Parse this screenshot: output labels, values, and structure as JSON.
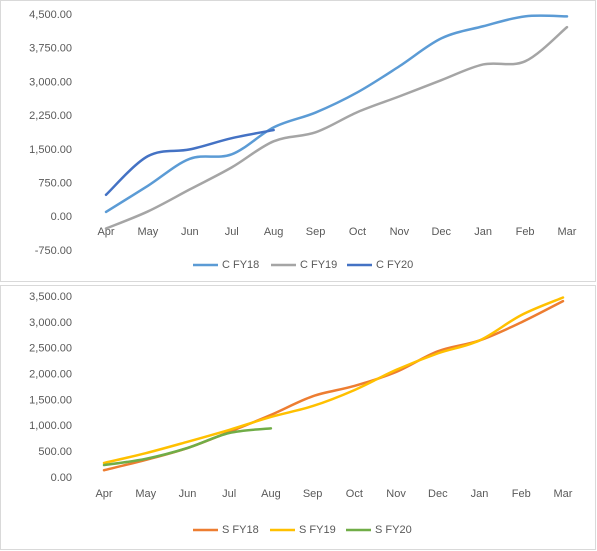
{
  "chart_data": [
    {
      "type": "line",
      "categories": [
        "Apr",
        "May",
        "Jun",
        "Jul",
        "Aug",
        "Sep",
        "Oct",
        "Nov",
        "Dec",
        "Jan",
        "Feb",
        "Mar"
      ],
      "series": [
        {
          "name": "C FY18",
          "color": "#5b9bd5",
          "values": [
            120,
            700,
            1300,
            1400,
            2000,
            2330,
            2780,
            3360,
            3980,
            4250,
            4470,
            4470
          ]
        },
        {
          "name": "C FY19",
          "color": "#a5a5a5",
          "values": [
            -250,
            130,
            620,
            1110,
            1690,
            1890,
            2340,
            2690,
            3050,
            3400,
            3470,
            4230
          ]
        },
        {
          "name": "C FY20",
          "color": "#4472c4",
          "values": [
            500,
            1360,
            1510,
            1760,
            1940,
            null,
            null,
            null,
            null,
            null,
            null,
            null
          ]
        }
      ],
      "ylim": [
        -750,
        4500
      ],
      "yticks": [
        {
          "value": 4500,
          "label": "4,500.00"
        },
        {
          "value": 3750,
          "label": "3,750.00"
        },
        {
          "value": 3000,
          "label": "3,000.00"
        },
        {
          "value": 2250,
          "label": "2,250.00"
        },
        {
          "value": 1500,
          "label": "1,500.00"
        },
        {
          "value": 750,
          "label": "750.00"
        },
        {
          "value": 0,
          "label": "0.00"
        },
        {
          "value": -750,
          "label": "-750.00"
        }
      ],
      "grid": false,
      "legend": "bottom"
    },
    {
      "type": "line",
      "categories": [
        "Apr",
        "May",
        "Jun",
        "Jul",
        "Aug",
        "Sep",
        "Oct",
        "Nov",
        "Dec",
        "Jan",
        "Feb",
        "Mar"
      ],
      "series": [
        {
          "name": "S FY18",
          "color": "#ed7d31",
          "values": [
            150,
            350,
            580,
            890,
            1220,
            1580,
            1780,
            2050,
            2450,
            2660,
            3010,
            3420
          ]
        },
        {
          "name": "S FY19",
          "color": "#ffc000",
          "values": [
            290,
            480,
            700,
            930,
            1180,
            1390,
            1700,
            2090,
            2410,
            2660,
            3150,
            3490
          ]
        },
        {
          "name": "S FY20",
          "color": "#70ad47",
          "values": [
            250,
            370,
            580,
            870,
            960,
            null,
            null,
            null,
            null,
            null,
            null,
            null
          ]
        }
      ],
      "ylim": [
        0,
        3500
      ],
      "yticks": [
        {
          "value": 3500,
          "label": "3,500.00"
        },
        {
          "value": 3000,
          "label": "3,000.00"
        },
        {
          "value": 2500,
          "label": "2,500.00"
        },
        {
          "value": 2000,
          "label": "2,000.00"
        },
        {
          "value": 1500,
          "label": "1,500.00"
        },
        {
          "value": 1000,
          "label": "1,000.00"
        },
        {
          "value": 500,
          "label": "500.00"
        },
        {
          "value": 0,
          "label": "0.00"
        }
      ],
      "grid": false,
      "legend": "bottom"
    }
  ]
}
